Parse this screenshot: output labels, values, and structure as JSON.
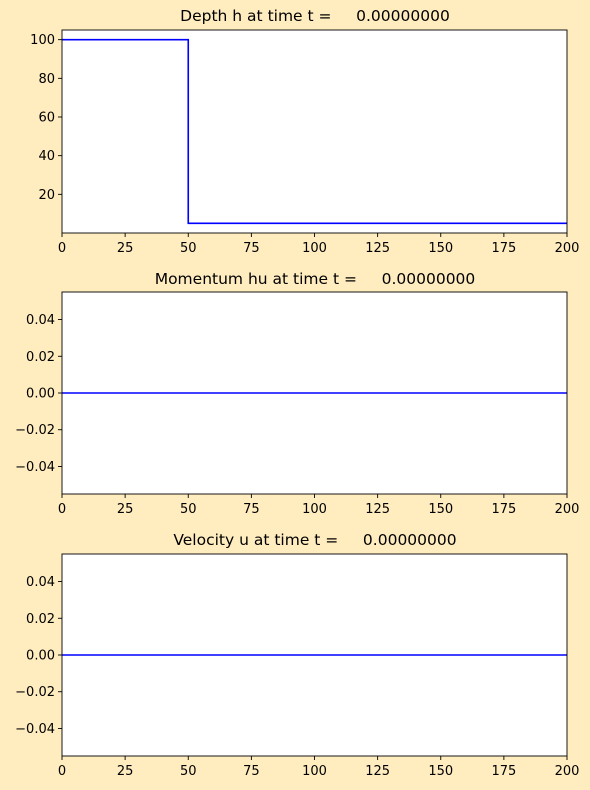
{
  "figure": {
    "background": "#ffedc0",
    "line_color": "#0000ff"
  },
  "chart_data": [
    {
      "type": "line",
      "title": "Depth h at time t =     0.00000000",
      "xlim": [
        0,
        200
      ],
      "ylim": [
        0,
        105
      ],
      "xticks": [
        0,
        25,
        50,
        75,
        100,
        125,
        150,
        175,
        200
      ],
      "xtick_labels": [
        "0",
        "25",
        "50",
        "75",
        "100",
        "125",
        "150",
        "175",
        "200"
      ],
      "yticks": [
        20,
        40,
        60,
        80,
        100
      ],
      "ytick_labels": [
        "20",
        "40",
        "60",
        "80",
        "100"
      ],
      "grid": false,
      "series": [
        {
          "x": [
            0,
            50,
            50,
            200
          ],
          "y": [
            100,
            100,
            5,
            5
          ]
        }
      ]
    },
    {
      "type": "line",
      "title": "Momentum hu at time t =     0.00000000",
      "xlim": [
        0,
        200
      ],
      "ylim": [
        -0.055,
        0.055
      ],
      "xticks": [
        0,
        25,
        50,
        75,
        100,
        125,
        150,
        175,
        200
      ],
      "xtick_labels": [
        "0",
        "25",
        "50",
        "75",
        "100",
        "125",
        "150",
        "175",
        "200"
      ],
      "yticks": [
        -0.04,
        -0.02,
        0.0,
        0.02,
        0.04
      ],
      "ytick_labels": [
        "−0.04",
        "−0.02",
        "0.00",
        "0.02",
        "0.04"
      ],
      "grid": false,
      "series": [
        {
          "x": [
            0,
            200
          ],
          "y": [
            0,
            0
          ]
        }
      ]
    },
    {
      "type": "line",
      "title": "Velocity u at time t =     0.00000000",
      "xlim": [
        0,
        200
      ],
      "ylim": [
        -0.055,
        0.055
      ],
      "xticks": [
        0,
        25,
        50,
        75,
        100,
        125,
        150,
        175,
        200
      ],
      "xtick_labels": [
        "0",
        "25",
        "50",
        "75",
        "100",
        "125",
        "150",
        "175",
        "200"
      ],
      "yticks": [
        -0.04,
        -0.02,
        0.0,
        0.02,
        0.04
      ],
      "ytick_labels": [
        "−0.04",
        "−0.02",
        "0.00",
        "0.02",
        "0.04"
      ],
      "grid": false,
      "series": [
        {
          "x": [
            0,
            200
          ],
          "y": [
            0,
            0
          ]
        }
      ]
    }
  ]
}
